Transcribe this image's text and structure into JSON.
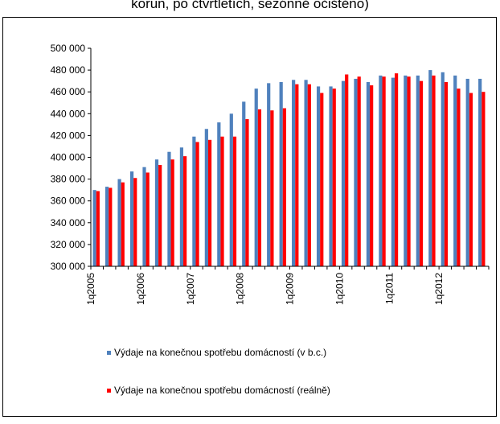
{
  "chart_data": {
    "type": "bar",
    "title": "korun, po čtvrtletích, sezónně očištěno)",
    "categories": [
      "1q2005",
      null,
      null,
      null,
      "1q2006",
      null,
      null,
      null,
      "1q2007",
      null,
      null,
      null,
      "1q2008",
      null,
      null,
      null,
      "1q2009",
      null,
      null,
      null,
      "1q2010",
      null,
      null,
      null,
      "1q2011",
      null,
      null,
      null,
      "1q2012",
      null,
      null,
      null
    ],
    "series": [
      {
        "name": "Výdaje na konečnou spotřebu domácností (v b.c.)",
        "color": "#4f81bd",
        "values": [
          370000,
          373000,
          380000,
          387000,
          391000,
          398000,
          405000,
          409000,
          419000,
          426000,
          432000,
          440000,
          451000,
          463000,
          468000,
          469000,
          471000,
          471000,
          465000,
          465000,
          470000,
          472000,
          469000,
          475000,
          473000,
          475000,
          475000,
          480000,
          478000,
          475000,
          472000,
          472000
        ]
      },
      {
        "name": "Výdaje na konečnou spotřebu domácností (reálně)",
        "color": "#ff0000",
        "values": [
          369000,
          372000,
          377000,
          381000,
          386000,
          393000,
          398000,
          401000,
          414000,
          416000,
          419000,
          419000,
          435000,
          444000,
          443000,
          445000,
          467000,
          467000,
          459000,
          463000,
          476000,
          474000,
          466000,
          474000,
          477000,
          474000,
          470000,
          475000,
          469000,
          463000,
          459000,
          460000
        ]
      }
    ],
    "ylim": [
      300000,
      500000
    ],
    "yticks": [
      {
        "value": 300000,
        "label": "300 000"
      },
      {
        "value": 320000,
        "label": "320 000"
      },
      {
        "value": 340000,
        "label": "340 000"
      },
      {
        "value": 360000,
        "label": "360 000"
      },
      {
        "value": 380000,
        "label": "380 000"
      },
      {
        "value": 400000,
        "label": "400 000"
      },
      {
        "value": 420000,
        "label": "420 000"
      },
      {
        "value": 440000,
        "label": "440 000"
      },
      {
        "value": 460000,
        "label": "460 000"
      },
      {
        "value": 480000,
        "label": "480 000"
      },
      {
        "value": 500000,
        "label": "500 000"
      }
    ],
    "grid": false,
    "legend": "bottom"
  }
}
